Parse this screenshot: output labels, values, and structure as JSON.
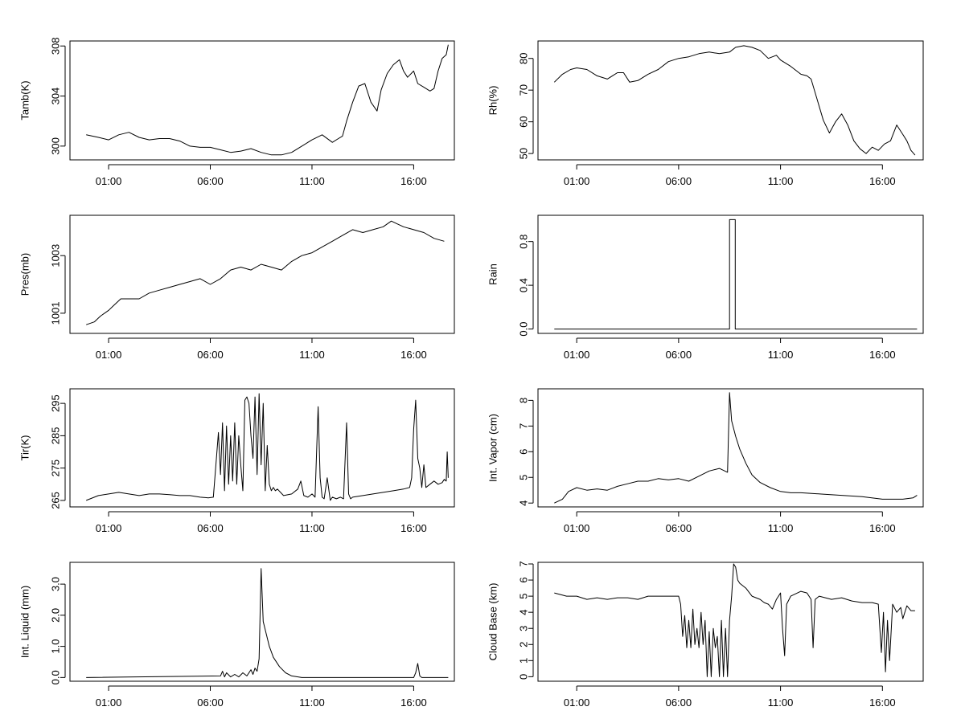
{
  "chart_data": [
    {
      "type": "line",
      "id": "tamb",
      "ylabel": "Tamb(K)",
      "xlabel": "",
      "xlim": [
        -0.9,
        18.0
      ],
      "ylim": [
        298.9,
        308.4
      ],
      "xticks": [
        1,
        6,
        11,
        16
      ],
      "xtick_labels": [
        "01:00",
        "06:00",
        "11:00",
        "16:00"
      ],
      "yticks": [
        300,
        304,
        308
      ],
      "ytick_labels": [
        "300",
        "304",
        "308"
      ],
      "series": [
        {
          "x": [
            -0.1,
            0.5,
            1.0,
            1.5,
            2.0,
            2.5,
            3.0,
            3.5,
            4.0,
            4.5,
            5.0,
            5.5,
            6.0,
            6.5,
            7.0,
            7.5,
            8.0,
            8.5,
            9.0,
            9.5,
            10.0,
            10.5,
            11.0,
            11.5,
            12.0,
            12.3,
            12.5,
            12.7,
            13.0,
            13.3,
            13.6,
            13.9,
            14.2,
            14.4,
            14.7,
            15.0,
            15.3,
            15.5,
            15.7,
            16.0,
            16.2,
            16.5,
            16.8,
            17.0,
            17.2,
            17.4,
            17.6,
            17.7
          ],
          "y": [
            300.9,
            300.7,
            300.5,
            300.9,
            301.1,
            300.7,
            300.5,
            300.6,
            300.6,
            300.4,
            300.0,
            299.9,
            299.9,
            299.7,
            299.5,
            299.6,
            299.8,
            299.5,
            299.3,
            299.3,
            299.5,
            300.0,
            300.5,
            300.9,
            300.3,
            300.6,
            300.8,
            302.0,
            303.5,
            304.8,
            305.0,
            303.5,
            302.8,
            304.5,
            305.8,
            306.5,
            306.9,
            306.0,
            305.5,
            306.0,
            305.0,
            304.7,
            304.4,
            304.6,
            306.0,
            307.0,
            307.3,
            308.1
          ]
        }
      ]
    },
    {
      "type": "line",
      "id": "rh",
      "ylabel": "Rh(%)",
      "xlabel": "",
      "xlim": [
        -0.9,
        18.0
      ],
      "ylim": [
        48.0,
        85.5
      ],
      "xticks": [
        1,
        6,
        11,
        16
      ],
      "xtick_labels": [
        "01:00",
        "06:00",
        "11:00",
        "16:00"
      ],
      "yticks": [
        50,
        60,
        70,
        80
      ],
      "ytick_labels": [
        "50",
        "60",
        "70",
        "80"
      ],
      "series": [
        {
          "x": [
            -0.1,
            0.3,
            0.7,
            1.0,
            1.5,
            2.0,
            2.5,
            3.0,
            3.3,
            3.6,
            4.0,
            4.5,
            5.0,
            5.5,
            6.0,
            6.5,
            7.0,
            7.5,
            8.0,
            8.5,
            8.8,
            9.2,
            9.6,
            10.0,
            10.4,
            10.8,
            11.0,
            11.5,
            12.0,
            12.3,
            12.5,
            12.8,
            13.1,
            13.4,
            13.7,
            14.0,
            14.3,
            14.6,
            14.9,
            15.2,
            15.5,
            15.8,
            16.1,
            16.4,
            16.7,
            17.0,
            17.2,
            17.4,
            17.6
          ],
          "y": [
            72.5,
            75.0,
            76.5,
            77.0,
            76.5,
            74.5,
            73.5,
            75.5,
            75.5,
            72.5,
            73.0,
            75.0,
            76.5,
            79.0,
            80.0,
            80.5,
            81.5,
            82.0,
            81.5,
            82.0,
            83.5,
            84.0,
            83.5,
            82.5,
            80.0,
            81.0,
            79.5,
            77.5,
            75.0,
            74.5,
            73.5,
            67.0,
            60.5,
            56.5,
            60.0,
            62.5,
            59.0,
            54.0,
            51.5,
            50.0,
            52.0,
            51.0,
            53.0,
            54.0,
            59.0,
            56.0,
            54.0,
            51.0,
            49.5
          ]
        }
      ]
    },
    {
      "type": "line",
      "id": "pres",
      "ylabel": "Pres(mb)",
      "xlabel": "",
      "xlim": [
        -0.9,
        18.0
      ],
      "ylim": [
        1000.3,
        1004.4
      ],
      "xticks": [
        1,
        6,
        11,
        16
      ],
      "xtick_labels": [
        "01:00",
        "06:00",
        "11:00",
        "16:00"
      ],
      "yticks": [
        1001,
        1003
      ],
      "ytick_labels": [
        "1001",
        "1003"
      ],
      "series": [
        {
          "x": [
            -0.1,
            0.3,
            0.6,
            1.0,
            1.3,
            1.6,
            2.0,
            2.5,
            3.0,
            3.5,
            4.0,
            4.5,
            5.0,
            5.5,
            6.0,
            6.5,
            7.0,
            7.5,
            8.0,
            8.5,
            9.0,
            9.5,
            10.0,
            10.5,
            11.0,
            11.5,
            12.0,
            12.5,
            13.0,
            13.5,
            14.0,
            14.5,
            14.9,
            15.2,
            15.5,
            16.0,
            16.5,
            17.0,
            17.5
          ],
          "y": [
            1000.6,
            1000.7,
            1000.9,
            1001.1,
            1001.3,
            1001.5,
            1001.5,
            1001.5,
            1001.7,
            1001.8,
            1001.9,
            1002.0,
            1002.1,
            1002.2,
            1002.0,
            1002.2,
            1002.5,
            1002.6,
            1002.5,
            1002.7,
            1002.6,
            1002.5,
            1002.8,
            1003.0,
            1003.1,
            1003.3,
            1003.5,
            1003.7,
            1003.9,
            1003.8,
            1003.9,
            1004.0,
            1004.2,
            1004.1,
            1004.0,
            1003.9,
            1003.8,
            1003.6,
            1003.5
          ]
        }
      ]
    },
    {
      "type": "line",
      "id": "rain",
      "ylabel": "Rain",
      "xlabel": "",
      "xlim": [
        -0.9,
        18.0
      ],
      "ylim": [
        -0.04,
        1.04
      ],
      "xticks": [
        1,
        6,
        11,
        16
      ],
      "xtick_labels": [
        "01:00",
        "06:00",
        "11:00",
        "16:00"
      ],
      "yticks": [
        0.0,
        0.4,
        0.8
      ],
      "ytick_labels": [
        "0.0",
        "0.4",
        "0.8"
      ],
      "series": [
        {
          "x": [
            -0.1,
            8.5,
            8.5,
            8.78,
            8.78,
            17.7
          ],
          "y": [
            0,
            0,
            1,
            1,
            0,
            0
          ]
        }
      ]
    },
    {
      "type": "line",
      "id": "tir",
      "ylabel": "Tir(K)",
      "xlabel": "",
      "xlim": [
        -0.9,
        18.0
      ],
      "ylim": [
        263.0,
        299.5
      ],
      "xticks": [
        1,
        6,
        11,
        16
      ],
      "xtick_labels": [
        "01:00",
        "06:00",
        "11:00",
        "16:00"
      ],
      "yticks": [
        265,
        275,
        285,
        295
      ],
      "ytick_labels": [
        "265",
        "275",
        "285",
        "295"
      ],
      "series": [
        {
          "x": [
            -0.1,
            0.5,
            1.0,
            1.5,
            2.0,
            2.5,
            3.0,
            3.5,
            4.0,
            4.5,
            5.0,
            5.5,
            5.9,
            6.15,
            6.3,
            6.4,
            6.5,
            6.6,
            6.7,
            6.8,
            6.9,
            7.0,
            7.1,
            7.2,
            7.3,
            7.4,
            7.5,
            7.6,
            7.7,
            7.8,
            7.9,
            8.0,
            8.1,
            8.2,
            8.3,
            8.4,
            8.5,
            8.6,
            8.7,
            8.8,
            8.9,
            9.0,
            9.1,
            9.2,
            9.3,
            9.6,
            10.0,
            10.3,
            10.45,
            10.6,
            10.8,
            11.0,
            11.15,
            11.3,
            11.4,
            11.5,
            11.6,
            11.75,
            11.9,
            12.0,
            12.2,
            12.4,
            12.55,
            12.7,
            12.8,
            12.9,
            13.0,
            13.5,
            14.0,
            14.5,
            15.0,
            15.5,
            15.8,
            15.9,
            16.0,
            16.1,
            16.2,
            16.3,
            16.4,
            16.5,
            16.6,
            16.8,
            17.0,
            17.2,
            17.4,
            17.5,
            17.6,
            17.65,
            17.7
          ],
          "y": [
            265.0,
            266.5,
            267.0,
            267.5,
            267.0,
            266.5,
            267.0,
            267.0,
            266.8,
            266.5,
            266.5,
            266.0,
            265.8,
            266.0,
            278.0,
            286.0,
            273.0,
            289.0,
            268.0,
            288.0,
            270.0,
            285.0,
            271.0,
            289.0,
            270.0,
            285.0,
            276.0,
            268.0,
            296.0,
            297.0,
            295.0,
            285.0,
            278.0,
            297.0,
            273.0,
            298.0,
            276.0,
            295.0,
            268.0,
            282.0,
            270.0,
            268.0,
            269.0,
            268.0,
            268.5,
            266.5,
            267.0,
            268.5,
            271.0,
            266.5,
            266.0,
            267.0,
            266.0,
            294.0,
            272.0,
            266.0,
            265.5,
            272.0,
            265.0,
            266.0,
            265.5,
            266.0,
            265.5,
            289.0,
            267.0,
            265.5,
            266.0,
            266.5,
            267.0,
            267.5,
            268.0,
            268.5,
            269.0,
            272.0,
            287.0,
            296.0,
            278.0,
            275.0,
            269.0,
            276.0,
            269.0,
            270.0,
            271.0,
            270.0,
            270.5,
            271.5,
            271.0,
            280.0,
            272.0
          ]
        }
      ]
    },
    {
      "type": "line",
      "id": "vapor",
      "ylabel": "Int. Vapor (cm)",
      "xlabel": "",
      "xlim": [
        -0.9,
        18.0
      ],
      "ylim": [
        3.85,
        8.45
      ],
      "xticks": [
        1,
        6,
        11,
        16
      ],
      "xtick_labels": [
        "01:00",
        "06:00",
        "11:00",
        "16:00"
      ],
      "yticks": [
        4,
        5,
        6,
        7,
        8
      ],
      "ytick_labels": [
        "4",
        "5",
        "6",
        "7",
        "8"
      ],
      "series": [
        {
          "x": [
            -0.1,
            0.3,
            0.6,
            1.0,
            1.5,
            2.0,
            2.5,
            3.0,
            3.5,
            4.0,
            4.5,
            5.0,
            5.5,
            6.0,
            6.5,
            7.0,
            7.5,
            8.0,
            8.4,
            8.5,
            8.6,
            8.8,
            9.0,
            9.3,
            9.6,
            10.0,
            10.5,
            11.0,
            11.5,
            12.0,
            13.0,
            14.0,
            15.0,
            16.0,
            16.5,
            17.0,
            17.5,
            17.7
          ],
          "y": [
            4.0,
            4.15,
            4.45,
            4.6,
            4.5,
            4.55,
            4.5,
            4.65,
            4.75,
            4.85,
            4.85,
            4.95,
            4.9,
            4.95,
            4.85,
            5.05,
            5.25,
            5.35,
            5.2,
            8.3,
            7.2,
            6.6,
            6.1,
            5.55,
            5.1,
            4.8,
            4.6,
            4.45,
            4.4,
            4.4,
            4.35,
            4.3,
            4.25,
            4.15,
            4.15,
            4.15,
            4.2,
            4.3
          ]
        }
      ]
    },
    {
      "type": "line",
      "id": "liquid",
      "ylabel": "Int. Liquid (mm)",
      "xlabel": "",
      "xlim": [
        -0.9,
        18.0
      ],
      "ylim": [
        -0.12,
        3.7
      ],
      "xticks": [
        1,
        6,
        11,
        16
      ],
      "xtick_labels": [
        "01:00",
        "06:00",
        "11:00",
        "16:00"
      ],
      "yticks": [
        0.0,
        1.0,
        2.0,
        3.0
      ],
      "ytick_labels": [
        "0.0",
        "1.0",
        "2.0",
        "3.0"
      ],
      "series": [
        {
          "x": [
            -0.1,
            6.5,
            6.6,
            6.7,
            6.8,
            7.0,
            7.2,
            7.4,
            7.6,
            7.8,
            8.0,
            8.1,
            8.2,
            8.3,
            8.4,
            8.5,
            8.6,
            8.75,
            8.9,
            9.1,
            9.4,
            9.7,
            10.0,
            10.5,
            11.0,
            12.0,
            16.0,
            16.1,
            16.2,
            16.3,
            16.4,
            17.7
          ],
          "y": [
            0.0,
            0.05,
            0.2,
            0.02,
            0.15,
            0.02,
            0.1,
            0.02,
            0.15,
            0.05,
            0.25,
            0.1,
            0.3,
            0.2,
            0.6,
            3.5,
            1.8,
            1.4,
            1.0,
            0.65,
            0.35,
            0.15,
            0.05,
            0.0,
            0.0,
            0.0,
            0.0,
            0.15,
            0.45,
            0.05,
            0.0,
            0.0
          ]
        }
      ]
    },
    {
      "type": "line",
      "id": "cloudbase",
      "ylabel": "Cloud Base (km)",
      "xlabel": "",
      "xlim": [
        -0.9,
        18.0
      ],
      "ylim": [
        -0.28,
        7.1
      ],
      "xticks": [
        1,
        6,
        11,
        16
      ],
      "xtick_labels": [
        "01:00",
        "06:00",
        "11:00",
        "16:00"
      ],
      "yticks": [
        0,
        1,
        2,
        3,
        4,
        5,
        6,
        7
      ],
      "ytick_labels": [
        "0",
        "1",
        "2",
        "3",
        "4",
        "5",
        "6",
        "7"
      ],
      "series": [
        {
          "x": [
            -0.1,
            0.5,
            1.0,
            1.5,
            2.0,
            2.5,
            3.0,
            3.5,
            4.0,
            4.5,
            5.0,
            5.5,
            6.0,
            6.1,
            6.2,
            6.3,
            6.4,
            6.5,
            6.6,
            6.7,
            6.8,
            6.9,
            7.0,
            7.1,
            7.2,
            7.3,
            7.4,
            7.5,
            7.6,
            7.7,
            7.8,
            7.9,
            8.0,
            8.1,
            8.2,
            8.3,
            8.4,
            8.5,
            8.6,
            8.7,
            8.8,
            8.9,
            9.0,
            9.3,
            9.6,
            10.0,
            10.2,
            10.4,
            10.6,
            10.8,
            11.0,
            11.1,
            11.2,
            11.3,
            11.5,
            12.0,
            12.3,
            12.5,
            12.6,
            12.7,
            12.9,
            13.5,
            14.0,
            14.5,
            15.0,
            15.5,
            15.8,
            15.95,
            16.05,
            16.15,
            16.25,
            16.35,
            16.5,
            16.7,
            16.9,
            17.0,
            17.2,
            17.4,
            17.6
          ],
          "y": [
            5.2,
            5.0,
            5.0,
            4.8,
            4.9,
            4.8,
            4.9,
            4.9,
            4.8,
            5.0,
            5.0,
            5.0,
            5.0,
            4.5,
            2.5,
            3.8,
            1.8,
            3.5,
            1.8,
            4.2,
            2.0,
            3.0,
            1.8,
            4.0,
            2.0,
            3.5,
            0.0,
            2.8,
            0.0,
            3.0,
            1.8,
            2.5,
            0.0,
            3.5,
            0.0,
            3.0,
            0.0,
            3.5,
            5.0,
            7.0,
            6.8,
            6.0,
            5.8,
            5.5,
            5.0,
            4.8,
            4.6,
            4.5,
            4.2,
            4.8,
            5.2,
            3.0,
            1.3,
            4.5,
            5.0,
            5.3,
            5.2,
            4.8,
            1.8,
            4.8,
            5.0,
            4.8,
            4.9,
            4.7,
            4.6,
            4.6,
            4.5,
            1.5,
            4.0,
            0.3,
            3.5,
            1.0,
            4.5,
            4.0,
            4.3,
            3.6,
            4.4,
            4.1,
            4.1
          ]
        }
      ]
    }
  ]
}
